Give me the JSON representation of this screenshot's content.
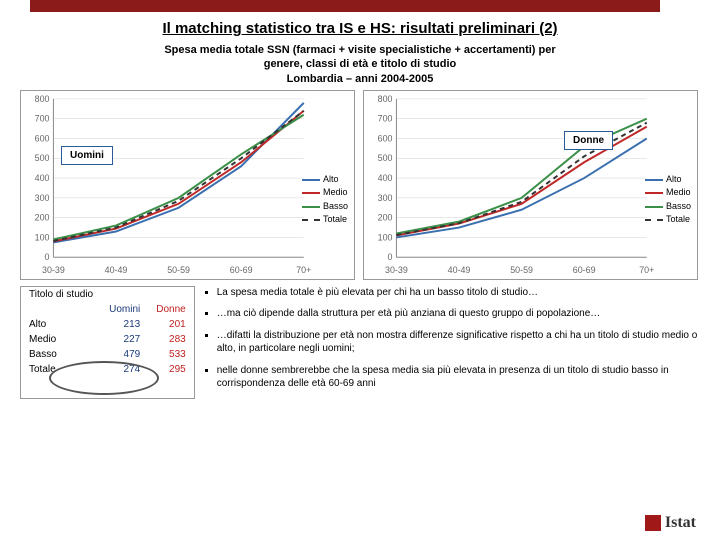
{
  "header": {
    "title": "Il matching statistico tra IS e HS: risultati preliminari (2)",
    "subtitle_l1": "Spesa media totale SSN (farmaci + visite specialistiche + accertamenti) per",
    "subtitle_l2": "genere, classi di età e titolo di studio",
    "subtitle_l3": "Lombardia – anni 2004-2005"
  },
  "charts": {
    "uomini_label": "Uomini",
    "donne_label": "Donne",
    "x_categories": [
      "30-39",
      "40-49",
      "50-59",
      "60-69",
      "70+"
    ],
    "y_ticks": [
      0,
      100,
      200,
      300,
      400,
      500,
      600,
      700,
      800
    ],
    "ylim": [
      0,
      800
    ],
    "grid_color": "#d0d0d0",
    "axis_color": "#888888",
    "tick_fontsize": 9,
    "colors": {
      "alto": "#3a6fb0",
      "medio": "#c02828",
      "basso": "#3a9048",
      "totale": "#333333"
    },
    "line_width": 2,
    "totale_dash": "5,4",
    "legend_labels": [
      "Alto",
      "Medio",
      "Basso",
      "Totale"
    ],
    "uomini": {
      "alto": [
        75,
        130,
        250,
        460,
        780
      ],
      "medio": [
        80,
        145,
        270,
        480,
        740
      ],
      "basso": [
        90,
        160,
        300,
        520,
        720
      ],
      "totale": [
        82,
        150,
        285,
        500,
        740
      ]
    },
    "donne": {
      "alto": [
        100,
        150,
        240,
        400,
        600
      ],
      "medio": [
        110,
        170,
        270,
        480,
        660
      ],
      "basso": [
        120,
        180,
        300,
        560,
        700
      ],
      "totale": [
        112,
        172,
        280,
        510,
        680
      ]
    }
  },
  "table": {
    "header_title": "Titolo di studio",
    "col_u": "Uomini",
    "col_d": "Donne",
    "rows": [
      {
        "label": "Alto",
        "u": "213",
        "d": "201"
      },
      {
        "label": "Medio",
        "u": "227",
        "d": "283"
      },
      {
        "label": "Basso",
        "u": "479",
        "d": "533"
      },
      {
        "label": "Totale",
        "u": "274",
        "d": "295"
      }
    ]
  },
  "bullets": [
    "La spesa media totale è più elevata per chi ha un basso titolo di studio…",
    "…ma ciò dipende dalla struttura per età più anziana di questo gruppo di popolazione…",
    "…difatti la distribuzione per età non mostra differenze significative rispetto a chi ha un titolo di studio medio o alto, in particolare negli uomini;",
    "nelle donne sembrerebbe che la spesa media sia più elevata in presenza di un titolo di studio basso in corrispondenza delle età 60-69 anni"
  ],
  "logo_text": "Istat"
}
